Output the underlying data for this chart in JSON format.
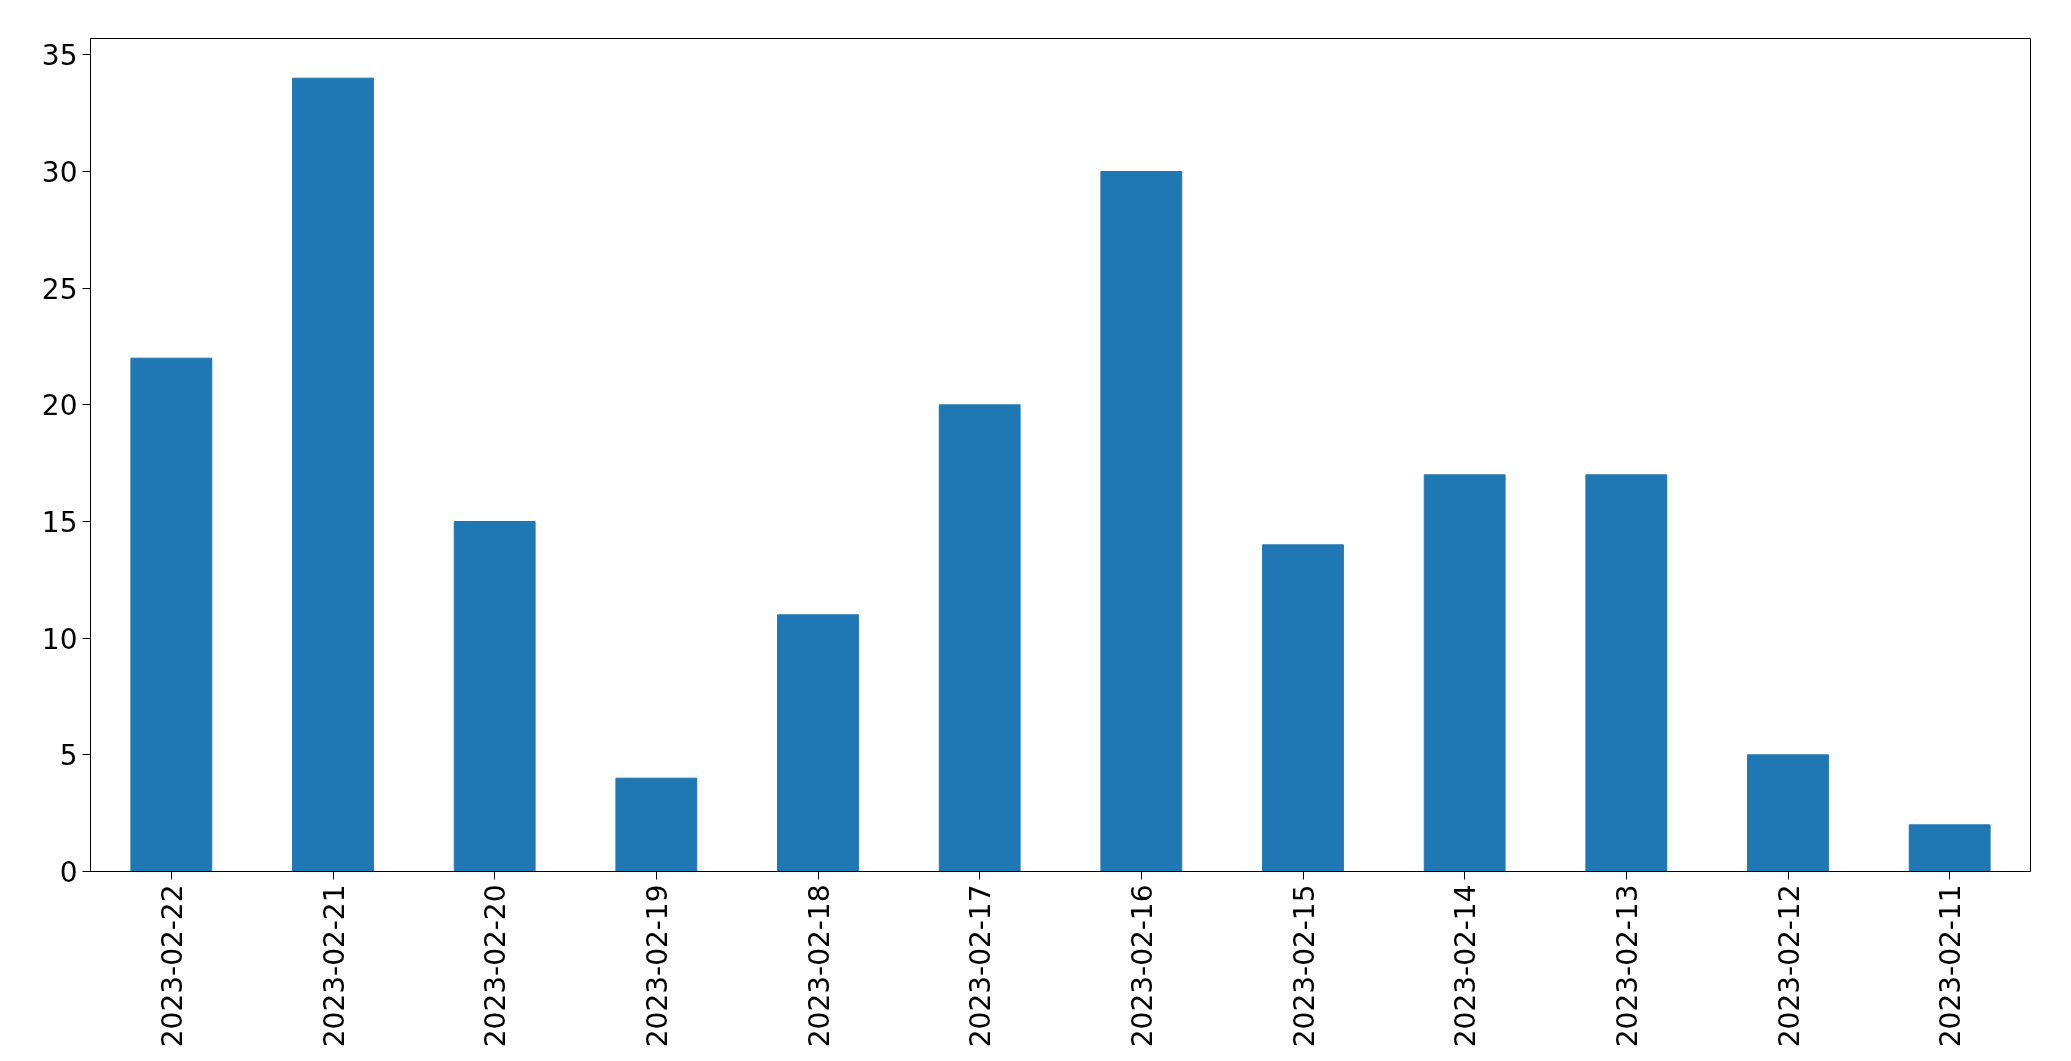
{
  "chart_data": {
    "type": "bar",
    "categories": [
      "2023-02-22",
      "2023-02-21",
      "2023-02-20",
      "2023-02-19",
      "2023-02-18",
      "2023-02-17",
      "2023-02-16",
      "2023-02-15",
      "2023-02-14",
      "2023-02-13",
      "2023-02-12",
      "2023-02-11"
    ],
    "values": [
      22,
      34,
      15,
      4,
      11,
      20,
      30,
      14,
      17,
      17,
      5,
      2
    ],
    "color": "#1f77b4",
    "ylim": [
      0,
      35.7
    ],
    "yticks": [
      0,
      5,
      10,
      15,
      20,
      25,
      30,
      35
    ]
  }
}
